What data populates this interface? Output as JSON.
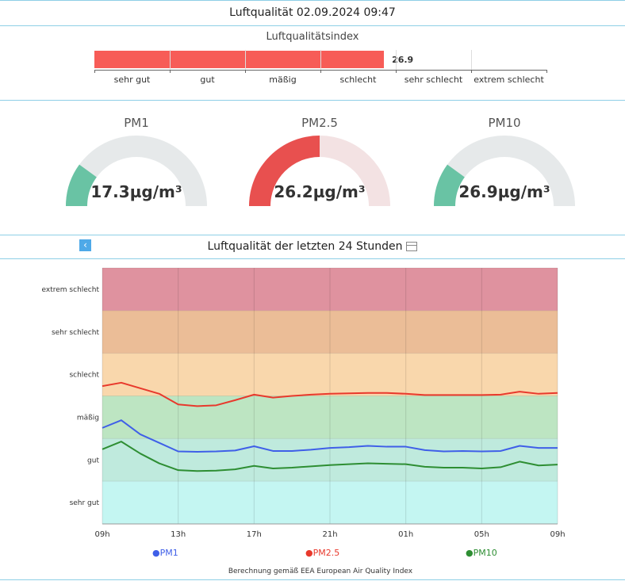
{
  "header": {
    "title": "Luftqualität 02.09.2024 09:47"
  },
  "aqi": {
    "title": "Luftqualitätsindex",
    "value": 26.9,
    "value_label": "26.9",
    "max": 42,
    "fill_color": "#f75c57",
    "categories": [
      "sehr gut",
      "gut",
      "mäßig",
      "schlecht",
      "sehr schlecht",
      "extrem schlecht"
    ]
  },
  "gauges": [
    {
      "name": "PM1",
      "value_label": "17.3µg/m³",
      "fraction": 0.2,
      "color": "#69c3a4",
      "track": "#e6e9ea"
    },
    {
      "name": "PM2.5",
      "value_label": "26.2µg/m³",
      "fraction": 0.5,
      "color": "#e8504f",
      "track": "#f3e2e3"
    },
    {
      "name": "PM10",
      "value_label": "26.9µg/m³",
      "fraction": 0.2,
      "color": "#69c3a4",
      "track": "#e6e9ea"
    }
  ],
  "chart": {
    "title": "Luftqualität der letzten 24 Stunden",
    "back_icon": "chevron-left-icon",
    "table_icon": "table-icon",
    "footnote": "Berechnung gemäß EEA European Air Quality Index"
  },
  "chart_data": {
    "type": "line",
    "x": [
      0,
      1,
      2,
      3,
      4,
      5,
      6,
      7,
      8,
      9,
      10,
      11,
      12,
      13,
      14,
      15,
      16,
      17,
      18,
      19,
      20,
      21,
      22,
      23,
      24
    ],
    "x_ticks": [
      {
        "x": 0,
        "label": "09h"
      },
      {
        "x": 4,
        "label": "13h"
      },
      {
        "x": 8,
        "label": "17h"
      },
      {
        "x": 12,
        "label": "21h"
      },
      {
        "x": 16,
        "label": "01h"
      },
      {
        "x": 20,
        "label": "05h"
      },
      {
        "x": 24,
        "label": "09h"
      }
    ],
    "y_categories": [
      "sehr gut",
      "gut",
      "mäßig",
      "schlecht",
      "sehr schlecht",
      "extrem schlecht"
    ],
    "bands": [
      {
        "label": "sehr gut",
        "color": "#c4f6f2"
      },
      {
        "label": "gut",
        "color": "#bfeadd"
      },
      {
        "label": "mäßig",
        "color": "#bde5c2"
      },
      {
        "label": "schlecht",
        "color": "#f9d7ac"
      },
      {
        "label": "sehr schlecht",
        "color": "#ebbd97"
      },
      {
        "label": "extrem schlecht",
        "color": "#df929f"
      }
    ],
    "ylim": [
      0,
      6
    ],
    "grid": true,
    "legend_position": "bottom",
    "series": [
      {
        "name": "PM1",
        "color": "#3f5fe8",
        "values": [
          2.25,
          2.43,
          2.1,
          1.9,
          1.7,
          1.69,
          1.7,
          1.72,
          1.82,
          1.71,
          1.71,
          1.74,
          1.78,
          1.8,
          1.83,
          1.81,
          1.81,
          1.73,
          1.7,
          1.71,
          1.7,
          1.71,
          1.83,
          1.78,
          1.78
        ]
      },
      {
        "name": "PM2.5",
        "color": "#e8392c",
        "values": [
          3.23,
          3.31,
          3.18,
          3.05,
          2.8,
          2.76,
          2.78,
          2.9,
          3.03,
          2.96,
          3.0,
          3.03,
          3.05,
          3.06,
          3.07,
          3.07,
          3.05,
          3.02,
          3.02,
          3.02,
          3.02,
          3.03,
          3.1,
          3.05,
          3.07
        ]
      },
      {
        "name": "PM10",
        "color": "#2e8e33",
        "values": [
          1.75,
          1.93,
          1.65,
          1.42,
          1.26,
          1.24,
          1.25,
          1.28,
          1.36,
          1.3,
          1.32,
          1.35,
          1.38,
          1.4,
          1.42,
          1.41,
          1.4,
          1.34,
          1.32,
          1.32,
          1.3,
          1.33,
          1.46,
          1.37,
          1.39
        ]
      }
    ]
  }
}
